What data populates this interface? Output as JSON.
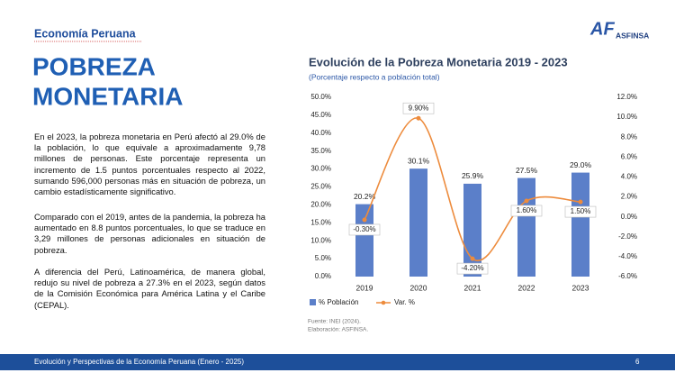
{
  "header": {
    "section": "Economía Peruana",
    "title_lines": [
      "POBREZA",
      "MONETARIA"
    ]
  },
  "logo": {
    "mark": "AF",
    "name": "ASFINSA"
  },
  "paragraphs": [
    "En el 2023, la pobreza monetaria en Perú afectó al 29.0% de la población, lo que equivale a aproximadamente 9,78 millones de personas. Este porcentaje representa un incremento de 1.5 puntos porcentuales respecto al 2022, sumando 596,000 personas más en situación de pobreza, un cambio estadísticamente significativo.",
    "Comparado con el 2019, antes de la pandemia, la pobreza ha aumentado en 8.8 puntos porcentuales, lo que se traduce en 3,29 millones de personas adicionales en situación de pobreza.",
    "A diferencia del Perú, Latinoamérica, de manera global, redujo su nivel de pobreza a 27.3% en el 2023, según datos de la Comisión Económica para América Latina y el Caribe (CEPAL)."
  ],
  "chart_data": {
    "type": "bar-line",
    "title": "Evolución de la Pobreza Monetaria 2019 - 2023",
    "subtitle": "(Porcentaje respecto a población total)",
    "categories": [
      "2019",
      "2020",
      "2021",
      "2022",
      "2023"
    ],
    "series": [
      {
        "name": "% Población",
        "type": "bar",
        "color": "#5b7fc9",
        "values": [
          20.2,
          30.1,
          25.9,
          27.5,
          29.0
        ],
        "value_labels": [
          "20.2%",
          "30.1%",
          "25.9%",
          "27.5%",
          "29.0%"
        ]
      },
      {
        "name": "Var.  %",
        "type": "line",
        "axis": "y2",
        "color": "#ed8b3c",
        "values": [
          -0.3,
          9.9,
          -4.2,
          1.6,
          1.5
        ],
        "value_labels": [
          "-0.30%",
          "9.90%",
          "-4.20%",
          "1.60%",
          "1.50%"
        ]
      }
    ],
    "ylim": [
      0,
      50
    ],
    "yticks": [
      {
        "value": 0,
        "label": "0.0%"
      },
      {
        "value": 5,
        "label": "5.0%"
      },
      {
        "value": 10,
        "label": "10.0%"
      },
      {
        "value": 15,
        "label": "15.0%"
      },
      {
        "value": 20,
        "label": "20.0%"
      },
      {
        "value": 25,
        "label": "25.0%"
      },
      {
        "value": 30,
        "label": "30.0%"
      },
      {
        "value": 35,
        "label": "35.0%"
      },
      {
        "value": 40,
        "label": "40.0%"
      },
      {
        "value": 45,
        "label": "45.0%"
      },
      {
        "value": 50,
        "label": "50.0%"
      }
    ],
    "y2lim": [
      -6,
      12
    ],
    "y2ticks": [
      {
        "value": -6,
        "label": "-6.0%"
      },
      {
        "value": -4,
        "label": "-4.0%"
      },
      {
        "value": -2,
        "label": "-2.0%"
      },
      {
        "value": 0,
        "label": "0.0%"
      },
      {
        "value": 2,
        "label": "2.0%"
      },
      {
        "value": 4,
        "label": "4.0%"
      },
      {
        "value": 6,
        "label": "6.0%"
      },
      {
        "value": 8,
        "label": "8.0%"
      },
      {
        "value": 10,
        "label": "10.0%"
      },
      {
        "value": 12,
        "label": "12.0%"
      }
    ],
    "legend": "bottom",
    "source_lines": [
      "Fuente: INEI (2024).",
      "Elaboración: ASFINSA."
    ]
  },
  "footer": {
    "text": "Evolución y Perspectivas de la Economía Peruana (Enero - 2025)",
    "page": 6
  }
}
